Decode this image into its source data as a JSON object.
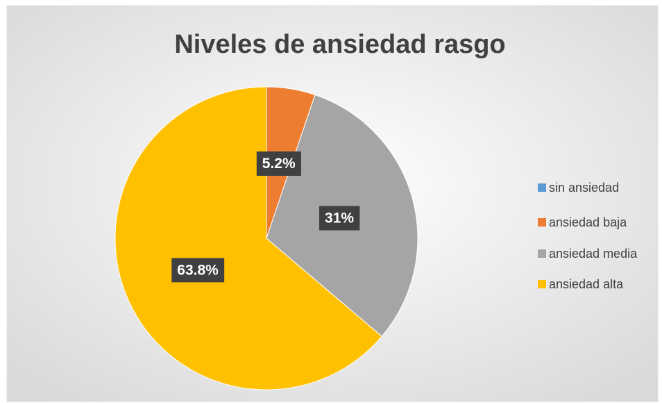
{
  "chart_data": {
    "type": "pie",
    "title": "Niveles de ansiedad rasgo",
    "categories": [
      "sin ansiedad",
      "ansiedad baja",
      "ansiedad media",
      "ansiedad alta"
    ],
    "values": [
      0,
      5.2,
      31,
      63.8
    ],
    "value_labels": [
      null,
      "5.2%",
      "31%",
      "63.8%"
    ],
    "colors": [
      "#5b9bd5",
      "#ed7d31",
      "#a5a5a5",
      "#ffc000"
    ],
    "legend": "right"
  }
}
